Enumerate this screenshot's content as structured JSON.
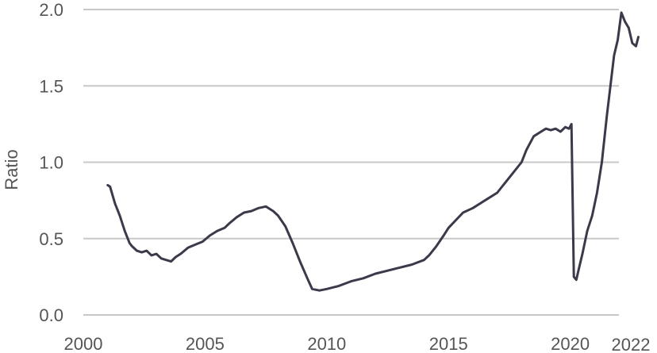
{
  "chart_data": {
    "type": "line",
    "title": "",
    "xlabel": "",
    "ylabel": "Ratio",
    "xlim": [
      2000,
      2022
    ],
    "ylim": [
      0.0,
      2.0
    ],
    "grid": true,
    "x_ticks": [
      "2000",
      "2005",
      "2010",
      "2015",
      "2020",
      "2022"
    ],
    "y_ticks": [
      "0.0",
      "0.5",
      "1.0",
      "1.5",
      "2.0"
    ],
    "line_color": "#3a3a4a",
    "series": [
      {
        "x": [
          2001.0,
          2001.1,
          2001.3,
          2001.5,
          2001.7,
          2001.9,
          2002.0,
          2002.2,
          2002.4,
          2002.6,
          2002.8,
          2003.0,
          2003.2,
          2003.4,
          2003.6,
          2003.8,
          2004.0,
          2004.3,
          2004.6,
          2004.9,
          2005.2,
          2005.5,
          2005.8,
          2006.0,
          2006.3,
          2006.6,
          2006.9,
          2007.2,
          2007.5,
          2007.8,
          2008.0,
          2008.3,
          2008.6,
          2008.9,
          2009.2,
          2009.4,
          2009.7,
          2010.0,
          2010.5,
          2011.0,
          2011.5,
          2012.0,
          2012.5,
          2013.0,
          2013.5,
          2014.0,
          2014.2,
          2014.5,
          2014.8,
          2015.0,
          2015.3,
          2015.6,
          2016.0,
          2016.3,
          2016.6,
          2017.0,
          2017.3,
          2017.6,
          2018.0,
          2018.2,
          2018.5,
          2018.8,
          2019.0,
          2019.2,
          2019.4,
          2019.6,
          2019.8,
          2019.95,
          2020.05,
          2020.15,
          2020.25,
          2020.35,
          2020.5,
          2020.7,
          2020.9,
          2021.1,
          2021.3,
          2021.5,
          2021.65,
          2021.8,
          2021.95,
          2022.1,
          2022.25,
          2022.4,
          2022.55,
          2022.7,
          2022.8
        ],
        "y": [
          0.85,
          0.84,
          0.73,
          0.65,
          0.55,
          0.47,
          0.45,
          0.42,
          0.41,
          0.42,
          0.39,
          0.4,
          0.37,
          0.36,
          0.35,
          0.38,
          0.4,
          0.44,
          0.46,
          0.48,
          0.52,
          0.55,
          0.57,
          0.6,
          0.64,
          0.67,
          0.68,
          0.7,
          0.71,
          0.68,
          0.65,
          0.58,
          0.47,
          0.35,
          0.24,
          0.17,
          0.16,
          0.17,
          0.19,
          0.22,
          0.24,
          0.27,
          0.29,
          0.31,
          0.33,
          0.36,
          0.39,
          0.45,
          0.52,
          0.57,
          0.62,
          0.67,
          0.7,
          0.73,
          0.76,
          0.8,
          0.86,
          0.92,
          1.0,
          1.08,
          1.17,
          1.2,
          1.22,
          1.21,
          1.22,
          1.2,
          1.23,
          1.22,
          1.25,
          0.25,
          0.23,
          0.3,
          0.4,
          0.55,
          0.65,
          0.8,
          1.0,
          1.3,
          1.5,
          1.7,
          1.8,
          1.98,
          1.92,
          1.88,
          1.78,
          1.76,
          1.82
        ]
      }
    ]
  }
}
